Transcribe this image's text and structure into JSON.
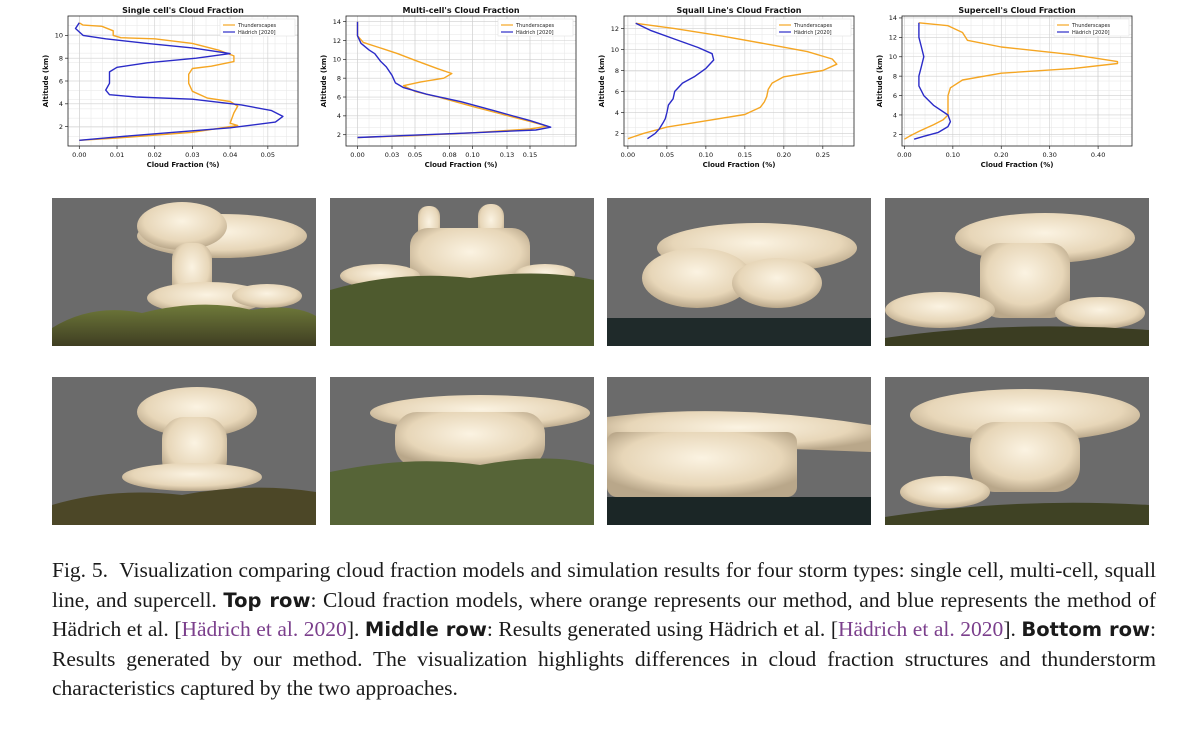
{
  "chart_data": [
    {
      "type": "line",
      "title": "Single cell's Cloud Fraction",
      "xlabel": "Cloud Fraction (%)",
      "ylabel": "Altitude (km)",
      "xlim": [
        -0.003,
        0.058
      ],
      "ylim": [
        0.3,
        11.7
      ],
      "xticks": [
        0.0,
        0.01,
        0.02,
        0.03,
        0.04,
        0.05
      ],
      "xtick_labels": [
        "0.00",
        "0.01",
        "0.02",
        "0.03",
        "0.04",
        "0.05"
      ],
      "yticks": [
        2,
        4,
        6,
        8,
        10
      ],
      "yticks_labels": [
        "2",
        "4",
        "6",
        "8",
        "10"
      ],
      "grid": true,
      "legend": "top-right",
      "series": [
        {
          "name": "Thunderscapes",
          "color": "#f5a623",
          "points": [
            [
              0.0,
              11.1
            ],
            [
              0.001,
              10.9
            ],
            [
              0.006,
              10.8
            ],
            [
              0.009,
              10.4
            ],
            [
              0.009,
              10.0
            ],
            [
              0.011,
              9.8
            ],
            [
              0.02,
              9.7
            ],
            [
              0.03,
              9.3
            ],
            [
              0.037,
              8.7
            ],
            [
              0.041,
              8.2
            ],
            [
              0.041,
              7.7
            ],
            [
              0.035,
              7.3
            ],
            [
              0.03,
              7.1
            ],
            [
              0.029,
              6.6
            ],
            [
              0.029,
              5.8
            ],
            [
              0.03,
              5.1
            ],
            [
              0.034,
              4.5
            ],
            [
              0.04,
              4.2
            ],
            [
              0.042,
              3.8
            ],
            [
              0.041,
              3.2
            ],
            [
              0.04,
              2.3
            ],
            [
              0.042,
              2.1
            ],
            [
              0.03,
              1.5
            ],
            [
              0.01,
              1.0
            ],
            [
              0.0,
              0.8
            ]
          ]
        },
        {
          "name": "Hädrich [2020]",
          "color": "#2b2bc8",
          "points": [
            [
              0.0,
              11.1
            ],
            [
              -0.001,
              10.6
            ],
            [
              0.001,
              10.0
            ],
            [
              0.007,
              9.7
            ],
            [
              0.018,
              9.3
            ],
            [
              0.03,
              8.9
            ],
            [
              0.04,
              8.4
            ],
            [
              0.031,
              8.0
            ],
            [
              0.018,
              7.6
            ],
            [
              0.01,
              7.2
            ],
            [
              0.008,
              6.8
            ],
            [
              0.008,
              5.8
            ],
            [
              0.007,
              5.2
            ],
            [
              0.008,
              4.8
            ],
            [
              0.015,
              4.6
            ],
            [
              0.03,
              4.4
            ],
            [
              0.043,
              3.9
            ],
            [
              0.051,
              3.4
            ],
            [
              0.054,
              2.9
            ],
            [
              0.052,
              2.4
            ],
            [
              0.04,
              1.9
            ],
            [
              0.025,
              1.5
            ],
            [
              0.01,
              1.1
            ],
            [
              0.0,
              0.8
            ]
          ]
        }
      ]
    },
    {
      "type": "line",
      "title": "Multi-cell's Cloud Fraction",
      "xlabel": "Cloud Fraction (%)",
      "ylabel": "Altitude (km)",
      "xlim": [
        -0.01,
        0.19
      ],
      "ylim": [
        0.8,
        14.6
      ],
      "xticks": [
        0.0,
        0.03,
        0.05,
        0.08,
        0.1,
        0.13,
        0.15
      ],
      "xtick_labels": [
        "0.00",
        "0.03",
        "0.05",
        "0.08",
        "0.10",
        "0.13",
        "0.15"
      ],
      "yticks": [
        2,
        4,
        6,
        8,
        10,
        12,
        14
      ],
      "yticks_labels": [
        "2",
        "4",
        "6",
        "8",
        "10",
        "12",
        "14"
      ],
      "grid": true,
      "legend": "top-right",
      "series": [
        {
          "name": "Thunderscapes",
          "color": "#f5a623",
          "points": [
            [
              0.0,
              14.0
            ],
            [
              0.0,
              12.5
            ],
            [
              0.005,
              11.8
            ],
            [
              0.02,
              11.2
            ],
            [
              0.035,
              10.6
            ],
            [
              0.05,
              9.9
            ],
            [
              0.07,
              9.0
            ],
            [
              0.082,
              8.5
            ],
            [
              0.075,
              8.0
            ],
            [
              0.055,
              7.6
            ],
            [
              0.04,
              7.2
            ],
            [
              0.05,
              6.6
            ],
            [
              0.07,
              6.0
            ],
            [
              0.1,
              5.0
            ],
            [
              0.125,
              4.2
            ],
            [
              0.15,
              3.4
            ],
            [
              0.165,
              2.9
            ],
            [
              0.15,
              2.6
            ],
            [
              0.1,
              2.2
            ],
            [
              0.05,
              1.9
            ],
            [
              0.0,
              1.7
            ]
          ]
        },
        {
          "name": "Hädrich [2020]",
          "color": "#2b2bc8",
          "points": [
            [
              0.0,
              14.0
            ],
            [
              0.0,
              12.5
            ],
            [
              0.003,
              11.7
            ],
            [
              0.01,
              11.0
            ],
            [
              0.015,
              10.6
            ],
            [
              0.02,
              9.8
            ],
            [
              0.025,
              9.2
            ],
            [
              0.03,
              8.3
            ],
            [
              0.033,
              7.5
            ],
            [
              0.04,
              7.0
            ],
            [
              0.06,
              6.3
            ],
            [
              0.09,
              5.5
            ],
            [
              0.12,
              4.5
            ],
            [
              0.15,
              3.5
            ],
            [
              0.168,
              2.8
            ],
            [
              0.155,
              2.5
            ],
            [
              0.1,
              2.2
            ],
            [
              0.04,
              1.9
            ],
            [
              0.0,
              1.7
            ]
          ]
        }
      ]
    },
    {
      "type": "line",
      "title": "Squall Line's Cloud Fraction",
      "xlabel": "Cloud Fraction (%)",
      "ylabel": "Altitude (km)",
      "xlim": [
        -0.005,
        0.29
      ],
      "ylim": [
        0.8,
        13.2
      ],
      "xticks": [
        0.0,
        0.05,
        0.1,
        0.15,
        0.2,
        0.25
      ],
      "xtick_labels": [
        "0.00",
        "0.05",
        "0.10",
        "0.15",
        "0.20",
        "0.25"
      ],
      "yticks": [
        2,
        4,
        6,
        8,
        10,
        12
      ],
      "yticks_labels": [
        "2",
        "4",
        "6",
        "8",
        "10",
        "12"
      ],
      "grid": true,
      "legend": "top-right",
      "series": [
        {
          "name": "Thunderscapes",
          "color": "#f5a623",
          "points": [
            [
              0.01,
              12.5
            ],
            [
              0.06,
              12.0
            ],
            [
              0.12,
              11.3
            ],
            [
              0.18,
              10.5
            ],
            [
              0.23,
              9.8
            ],
            [
              0.262,
              9.1
            ],
            [
              0.268,
              8.6
            ],
            [
              0.25,
              8.0
            ],
            [
              0.2,
              7.4
            ],
            [
              0.185,
              6.8
            ],
            [
              0.18,
              6.2
            ],
            [
              0.178,
              5.5
            ],
            [
              0.175,
              5.0
            ],
            [
              0.17,
              4.5
            ],
            [
              0.15,
              3.8
            ],
            [
              0.1,
              3.2
            ],
            [
              0.05,
              2.6
            ],
            [
              0.02,
              2.0
            ],
            [
              0.0,
              1.5
            ]
          ]
        },
        {
          "name": "Hädrich [2020]",
          "color": "#2b2bc8",
          "points": [
            [
              0.01,
              12.5
            ],
            [
              0.03,
              11.8
            ],
            [
              0.06,
              11.0
            ],
            [
              0.09,
              10.2
            ],
            [
              0.108,
              9.6
            ],
            [
              0.11,
              9.0
            ],
            [
              0.1,
              8.2
            ],
            [
              0.085,
              7.4
            ],
            [
              0.07,
              6.8
            ],
            [
              0.06,
              6.0
            ],
            [
              0.058,
              5.3
            ],
            [
              0.052,
              4.7
            ],
            [
              0.05,
              4.0
            ],
            [
              0.048,
              3.4
            ],
            [
              0.045,
              3.0
            ],
            [
              0.04,
              2.4
            ],
            [
              0.035,
              2.0
            ],
            [
              0.025,
              1.5
            ]
          ]
        }
      ]
    },
    {
      "type": "line",
      "title": "Supercell's Cloud Fraction",
      "xlabel": "Cloud Fraction (%)",
      "ylabel": "Altitude (km)",
      "xlim": [
        -0.005,
        0.47
      ],
      "ylim": [
        0.8,
        14.2
      ],
      "xticks": [
        0.0,
        0.1,
        0.2,
        0.3,
        0.4
      ],
      "xtick_labels": [
        "0.00",
        "0.10",
        "0.20",
        "0.30",
        "0.40"
      ],
      "yticks": [
        2,
        4,
        6,
        8,
        10,
        12,
        14
      ],
      "yticks_labels": [
        "2",
        "4",
        "6",
        "8",
        "10",
        "12",
        "14"
      ],
      "grid": true,
      "legend": "top-right",
      "series": [
        {
          "name": "Thunderscapes",
          "color": "#f5a623",
          "points": [
            [
              0.03,
              13.5
            ],
            [
              0.09,
              13.2
            ],
            [
              0.12,
              12.5
            ],
            [
              0.13,
              11.7
            ],
            [
              0.2,
              11.0
            ],
            [
              0.35,
              10.2
            ],
            [
              0.44,
              9.5
            ],
            [
              0.44,
              9.3
            ],
            [
              0.35,
              8.8
            ],
            [
              0.2,
              8.3
            ],
            [
              0.12,
              7.6
            ],
            [
              0.095,
              6.8
            ],
            [
              0.09,
              6.0
            ],
            [
              0.09,
              5.0
            ],
            [
              0.09,
              4.0
            ],
            [
              0.08,
              3.5
            ],
            [
              0.06,
              3.0
            ],
            [
              0.03,
              2.3
            ],
            [
              0.01,
              1.8
            ],
            [
              0.0,
              1.5
            ]
          ]
        },
        {
          "name": "Hädrich [2020]",
          "color": "#2b2bc8",
          "points": [
            [
              0.03,
              13.5
            ],
            [
              0.03,
              12.0
            ],
            [
              0.035,
              11.0
            ],
            [
              0.04,
              10.0
            ],
            [
              0.035,
              9.0
            ],
            [
              0.03,
              8.0
            ],
            [
              0.03,
              7.0
            ],
            [
              0.04,
              6.0
            ],
            [
              0.06,
              5.0
            ],
            [
              0.09,
              4.0
            ],
            [
              0.095,
              3.3
            ],
            [
              0.09,
              2.8
            ],
            [
              0.07,
              2.2
            ],
            [
              0.04,
              1.8
            ],
            [
              0.02,
              1.5
            ]
          ]
        }
      ]
    }
  ],
  "renders": {
    "middle_row": [
      "single-cell-hadrich",
      "multi-cell-hadrich",
      "squall-line-hadrich",
      "supercell-hadrich"
    ],
    "bottom_row": [
      "single-cell-ours",
      "multi-cell-ours",
      "squall-line-ours",
      "supercell-ours"
    ]
  },
  "caption": {
    "fig_label": "Fig. 5.",
    "intro": "Visualization comparing cloud fraction models and simulation results for four storm types: single cell, multi-cell, squall line, and supercell.",
    "top_heading": "Top row",
    "top_text": ": Cloud fraction models, where orange represents our method, and blue represents the method of Hädrich et al. [",
    "cite1": "Hädrich et al. 2020",
    "top_end": "].",
    "middle_heading": "Middle row",
    "middle_text": ": Results generated using Hädrich et al. [",
    "cite2": "Hädrich et al. 2020",
    "middle_end": "].",
    "bottom_heading": "Bottom row",
    "bottom_text": ": Results generated by our method. The visualization highlights differences in cloud fraction structures and thunderstorm characteristics captured by the two approaches."
  }
}
